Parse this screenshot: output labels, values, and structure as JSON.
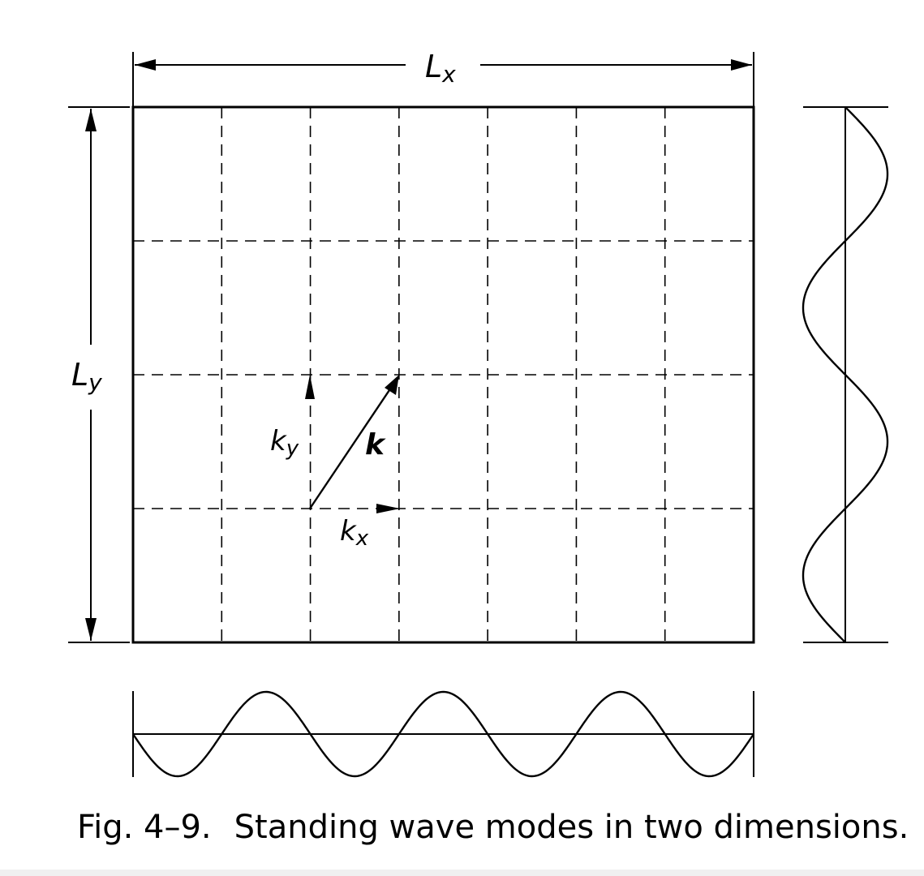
{
  "labels": {
    "Lx": {
      "main": "L",
      "sub": "x"
    },
    "Ly": {
      "main": "L",
      "sub": "y"
    },
    "kx": {
      "main": "k",
      "sub": "x"
    },
    "ky": {
      "main": "k",
      "sub": "y"
    },
    "k": "k"
  },
  "caption": {
    "number": "Fig. 4–9.",
    "text": "Standing wave modes in two dimensions."
  },
  "grid": {
    "columns": 7,
    "rows": 4
  },
  "waves": {
    "horizontal_half_wavelengths": 7,
    "vertical_half_wavelengths": 4
  }
}
